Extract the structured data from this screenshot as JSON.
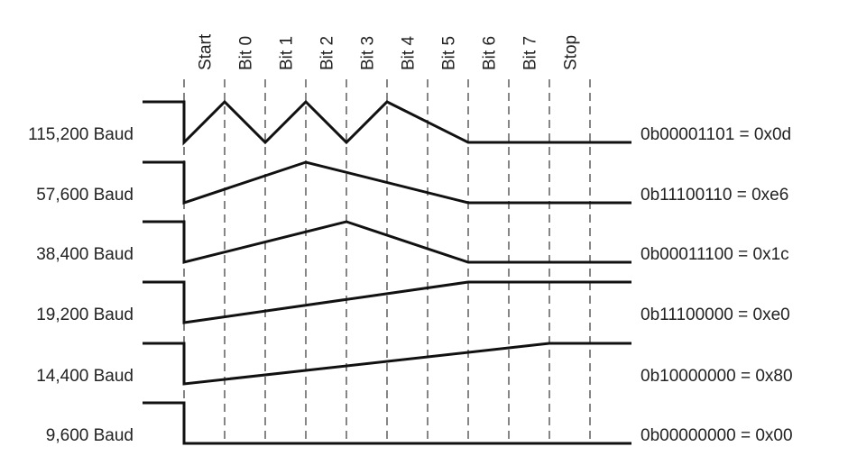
{
  "columns": [
    "Start",
    "Bit 0",
    "Bit 1",
    "Bit 2",
    "Bit 3",
    "Bit 4",
    "Bit 5",
    "Bit 6",
    "Bit 7",
    "Stop"
  ],
  "rows": [
    {
      "label": "115,200 Baud",
      "value": "0b00001101 = 0x0d",
      "samples_per_bit": 1,
      "bits": [
        1,
        0,
        1,
        0,
        1,
        1,
        0,
        0,
        0,
        0
      ]
    },
    {
      "label": "57,600 Baud",
      "value": "0b11100110 = 0xe6",
      "samples_per_bit": 2,
      "bits": [
        0,
        1,
        1,
        0,
        0
      ]
    },
    {
      "label": "38,400 Baud",
      "value": "0b00011100 = 0x1c",
      "samples_per_bit": 3,
      "bits": [
        0,
        1,
        0
      ]
    },
    {
      "label": "19,200 Baud",
      "value": "0b11100000 = 0xe0",
      "samples_per_bit": 6,
      "bits": [
        0,
        1
      ]
    },
    {
      "label": "14,400 Baud",
      "value": "0b10000000 = 0x80",
      "samples_per_bit": 8,
      "bits": [
        0
      ]
    },
    {
      "label": "9,600 Baud",
      "value": "0b00000000 = 0x00",
      "samples_per_bit": 12,
      "bits": []
    }
  ],
  "colors": {
    "line": "#111111",
    "divider": "#444444",
    "text": "#222222"
  }
}
